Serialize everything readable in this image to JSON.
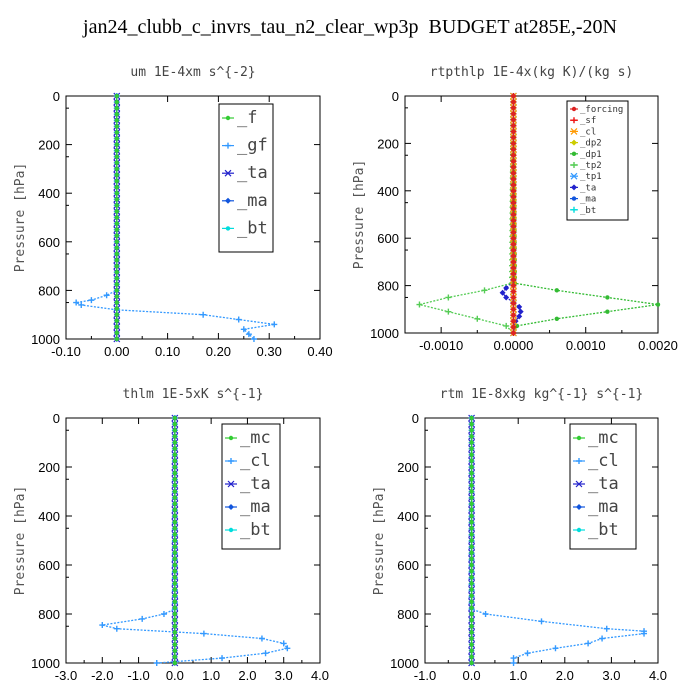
{
  "figure": {
    "title": "jan24_clubb_c_invrs_tau_n2_clear_wp3p  BUDGET at285E,-20N"
  },
  "chart_data": [
    {
      "type": "line",
      "title": "um  1E-4xm s^{-2}",
      "ylabel": "Pressure [hPa]",
      "xlim": [
        -0.1,
        0.4
      ],
      "ylim": [
        1000,
        0
      ],
      "xticks": [
        "-0.10",
        "0.00",
        "0.10",
        "0.20",
        "0.30",
        "0.40"
      ],
      "yticks": [
        "0",
        "200",
        "400",
        "600",
        "800",
        "1000"
      ],
      "legend_position": "top-right",
      "series": [
        {
          "name": "_f",
          "color": "#33cc33",
          "y": [
            0,
            100,
            200,
            300,
            400,
            500,
            600,
            700,
            800,
            900,
            1000
          ],
          "x": [
            0,
            0,
            0,
            0,
            0,
            0,
            0,
            0,
            0,
            0,
            0
          ]
        },
        {
          "name": "_gf",
          "color": "#3399ff",
          "y": [
            0,
            800,
            820,
            840,
            850,
            860,
            880,
            900,
            920,
            940,
            960,
            980,
            1000
          ],
          "x": [
            0,
            0,
            -0.02,
            -0.05,
            -0.08,
            -0.07,
            0,
            0.17,
            0.24,
            0.31,
            0.25,
            0.26,
            0.27
          ]
        },
        {
          "name": "_ta",
          "color": "#2222cc",
          "y": [
            0,
            500,
            900,
            1000
          ],
          "x": [
            0,
            0,
            0,
            0
          ]
        },
        {
          "name": "_ma",
          "color": "#1155dd",
          "y": [
            0,
            1000
          ],
          "x": [
            0,
            0
          ]
        },
        {
          "name": "_bt",
          "color": "#00dddd",
          "y": [
            0,
            500,
            1000
          ],
          "x": [
            0,
            0,
            0
          ]
        }
      ]
    },
    {
      "type": "line",
      "title": "rtpthlp  1E-4x(kg K)/(kg s)",
      "ylabel": "Pressure [hPa]",
      "xlim": [
        -0.0015,
        0.002
      ],
      "ylim": [
        1000,
        0
      ],
      "xticks": [
        "-0.0010",
        "0.0000",
        "0.0010",
        "0.0020"
      ],
      "yticks": [
        "0",
        "200",
        "400",
        "600",
        "800",
        "1000"
      ],
      "legend_position": "top-right",
      "series": [
        {
          "name": "_forcing",
          "color": "#dd2222",
          "y": [
            0,
            100,
            200,
            300,
            400,
            500,
            600,
            700,
            800,
            900,
            1000
          ],
          "x": [
            0,
            0,
            0,
            0,
            0,
            0,
            0,
            0,
            0,
            0,
            0
          ]
        },
        {
          "name": "_sf",
          "color": "#ee1111",
          "y": [
            0,
            500,
            1000
          ],
          "x": [
            0,
            0,
            0
          ]
        },
        {
          "name": "_cl",
          "color": "#ff9900",
          "y": [
            0,
            1000
          ],
          "x": [
            0,
            0
          ]
        },
        {
          "name": "_dp2",
          "color": "#cccc00",
          "y": [
            0,
            1000
          ],
          "x": [
            0,
            0
          ]
        },
        {
          "name": "_dp1",
          "color": "#33bb33",
          "y": [
            0,
            790,
            820,
            850,
            880,
            910,
            940,
            970,
            1000
          ],
          "x": [
            0,
            2e-05,
            0.0006,
            0.0013,
            0.002,
            0.0013,
            0.0006,
            5e-05,
            0
          ]
        },
        {
          "name": "_tp2",
          "color": "#55cc55",
          "y": [
            0,
            790,
            820,
            850,
            880,
            910,
            940,
            970,
            1000
          ],
          "x": [
            0,
            -2e-05,
            -0.0004,
            -0.0009,
            -0.0013,
            -0.0009,
            -0.0005,
            -0.0001,
            0
          ]
        },
        {
          "name": "_tp1",
          "color": "#3399ff",
          "y": [
            0,
            800,
            1000
          ],
          "x": [
            0,
            0,
            0
          ]
        },
        {
          "name": "_ta",
          "color": "#2222cc",
          "y": [
            0,
            780,
            810,
            830,
            850,
            870,
            890,
            910,
            930,
            950,
            1000
          ],
          "x": [
            0,
            0,
            -0.0001,
            -0.00015,
            -0.0001,
            0,
            8e-05,
            0.0001,
            8e-05,
            3e-05,
            0
          ]
        },
        {
          "name": "_ma",
          "color": "#1155dd",
          "y": [
            0,
            1000
          ],
          "x": [
            0,
            0
          ]
        },
        {
          "name": "_bt",
          "color": "#00dddd",
          "y": [
            0,
            1000
          ],
          "x": [
            0,
            0
          ]
        }
      ]
    },
    {
      "type": "line",
      "title": "thlm  1E-5xK s^{-1}",
      "ylabel": "Pressure [hPa]",
      "xlim": [
        -3.0,
        4.0
      ],
      "ylim": [
        1000,
        0
      ],
      "xticks": [
        "-3.0",
        "-2.0",
        "-1.0",
        "0.0",
        "1.0",
        "2.0",
        "3.0",
        "4.0"
      ],
      "yticks": [
        "0",
        "200",
        "400",
        "600",
        "800",
        "1000"
      ],
      "legend_position": "top-right",
      "series": [
        {
          "name": "_mc",
          "color": "#33cc33",
          "y": [
            0,
            100,
            200,
            300,
            400,
            500,
            600,
            700,
            800,
            900,
            1000
          ],
          "x": [
            0,
            0,
            0,
            0,
            0,
            0,
            0,
            0,
            0,
            0,
            0
          ]
        },
        {
          "name": "_cl",
          "color": "#3399ff",
          "y": [
            0,
            780,
            800,
            820,
            845,
            860,
            880,
            900,
            920,
            940,
            960,
            980,
            1000
          ],
          "x": [
            0,
            0,
            -0.3,
            -0.9,
            -2.0,
            -1.6,
            0.8,
            2.4,
            3.0,
            3.1,
            2.5,
            1.3,
            -0.5
          ]
        },
        {
          "name": "_ta",
          "color": "#2222cc",
          "y": [
            0,
            500,
            1000
          ],
          "x": [
            0,
            0,
            0
          ]
        },
        {
          "name": "_ma",
          "color": "#1155dd",
          "y": [
            0,
            1000
          ],
          "x": [
            0,
            0
          ]
        },
        {
          "name": "_bt",
          "color": "#00dddd",
          "y": [
            0,
            500,
            1000
          ],
          "x": [
            0,
            0,
            0
          ]
        }
      ]
    },
    {
      "type": "line",
      "title": "rtm  1E-8xkg kg^{-1} s^{-1}",
      "ylabel": "Pressure [hPa]",
      "xlim": [
        -1.0,
        4.0
      ],
      "ylim": [
        1000,
        0
      ],
      "xticks": [
        "-1.0",
        "0.0",
        "1.0",
        "2.0",
        "3.0",
        "4.0"
      ],
      "yticks": [
        "0",
        "200",
        "400",
        "600",
        "800",
        "1000"
      ],
      "legend_position": "top-right",
      "series": [
        {
          "name": "_mc",
          "color": "#33cc33",
          "y": [
            0,
            100,
            200,
            300,
            400,
            500,
            600,
            700,
            800,
            900,
            1000
          ],
          "x": [
            0,
            0,
            0,
            0,
            0,
            0,
            0,
            0,
            0,
            0,
            0
          ]
        },
        {
          "name": "_cl",
          "color": "#3399ff",
          "y": [
            0,
            780,
            800,
            830,
            860,
            870,
            880,
            900,
            920,
            940,
            960,
            980,
            1000
          ],
          "x": [
            0,
            0,
            0.3,
            1.5,
            2.9,
            3.7,
            3.7,
            2.8,
            2.5,
            1.8,
            1.2,
            0.9,
            0.9
          ]
        },
        {
          "name": "_ta",
          "color": "#2222cc",
          "y": [
            0,
            500,
            1000
          ],
          "x": [
            0,
            0,
            0
          ]
        },
        {
          "name": "_ma",
          "color": "#1155dd",
          "y": [
            0,
            1000
          ],
          "x": [
            0,
            0
          ]
        },
        {
          "name": "_bt",
          "color": "#00dddd",
          "y": [
            0,
            500,
            1000
          ],
          "x": [
            0,
            0,
            0
          ]
        }
      ]
    }
  ]
}
